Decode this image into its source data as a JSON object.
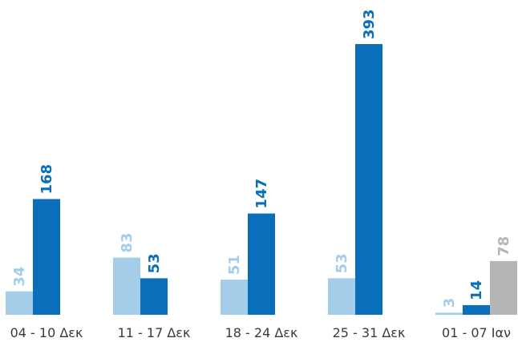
{
  "chart_data": {
    "type": "bar",
    "categories": [
      "04 - 10 Δεκ",
      "11 - 17 Δεκ",
      "18 - 24 Δεκ",
      "25 - 31 Δεκ",
      "01 - 07 Ιαν"
    ],
    "series": [
      {
        "color": "#a3cde8",
        "values": [
          34,
          83,
          51,
          53,
          3
        ]
      },
      {
        "color": "#0a6fba",
        "values": [
          168,
          53,
          147,
          393,
          14
        ]
      },
      {
        "color": "#b5b5b5",
        "values": [
          null,
          null,
          null,
          null,
          78
        ]
      }
    ],
    "title": "",
    "xlabel": "",
    "ylabel": "",
    "ylim": [
      0,
      400
    ],
    "grid": false,
    "legend": "none",
    "data_labels": true
  }
}
